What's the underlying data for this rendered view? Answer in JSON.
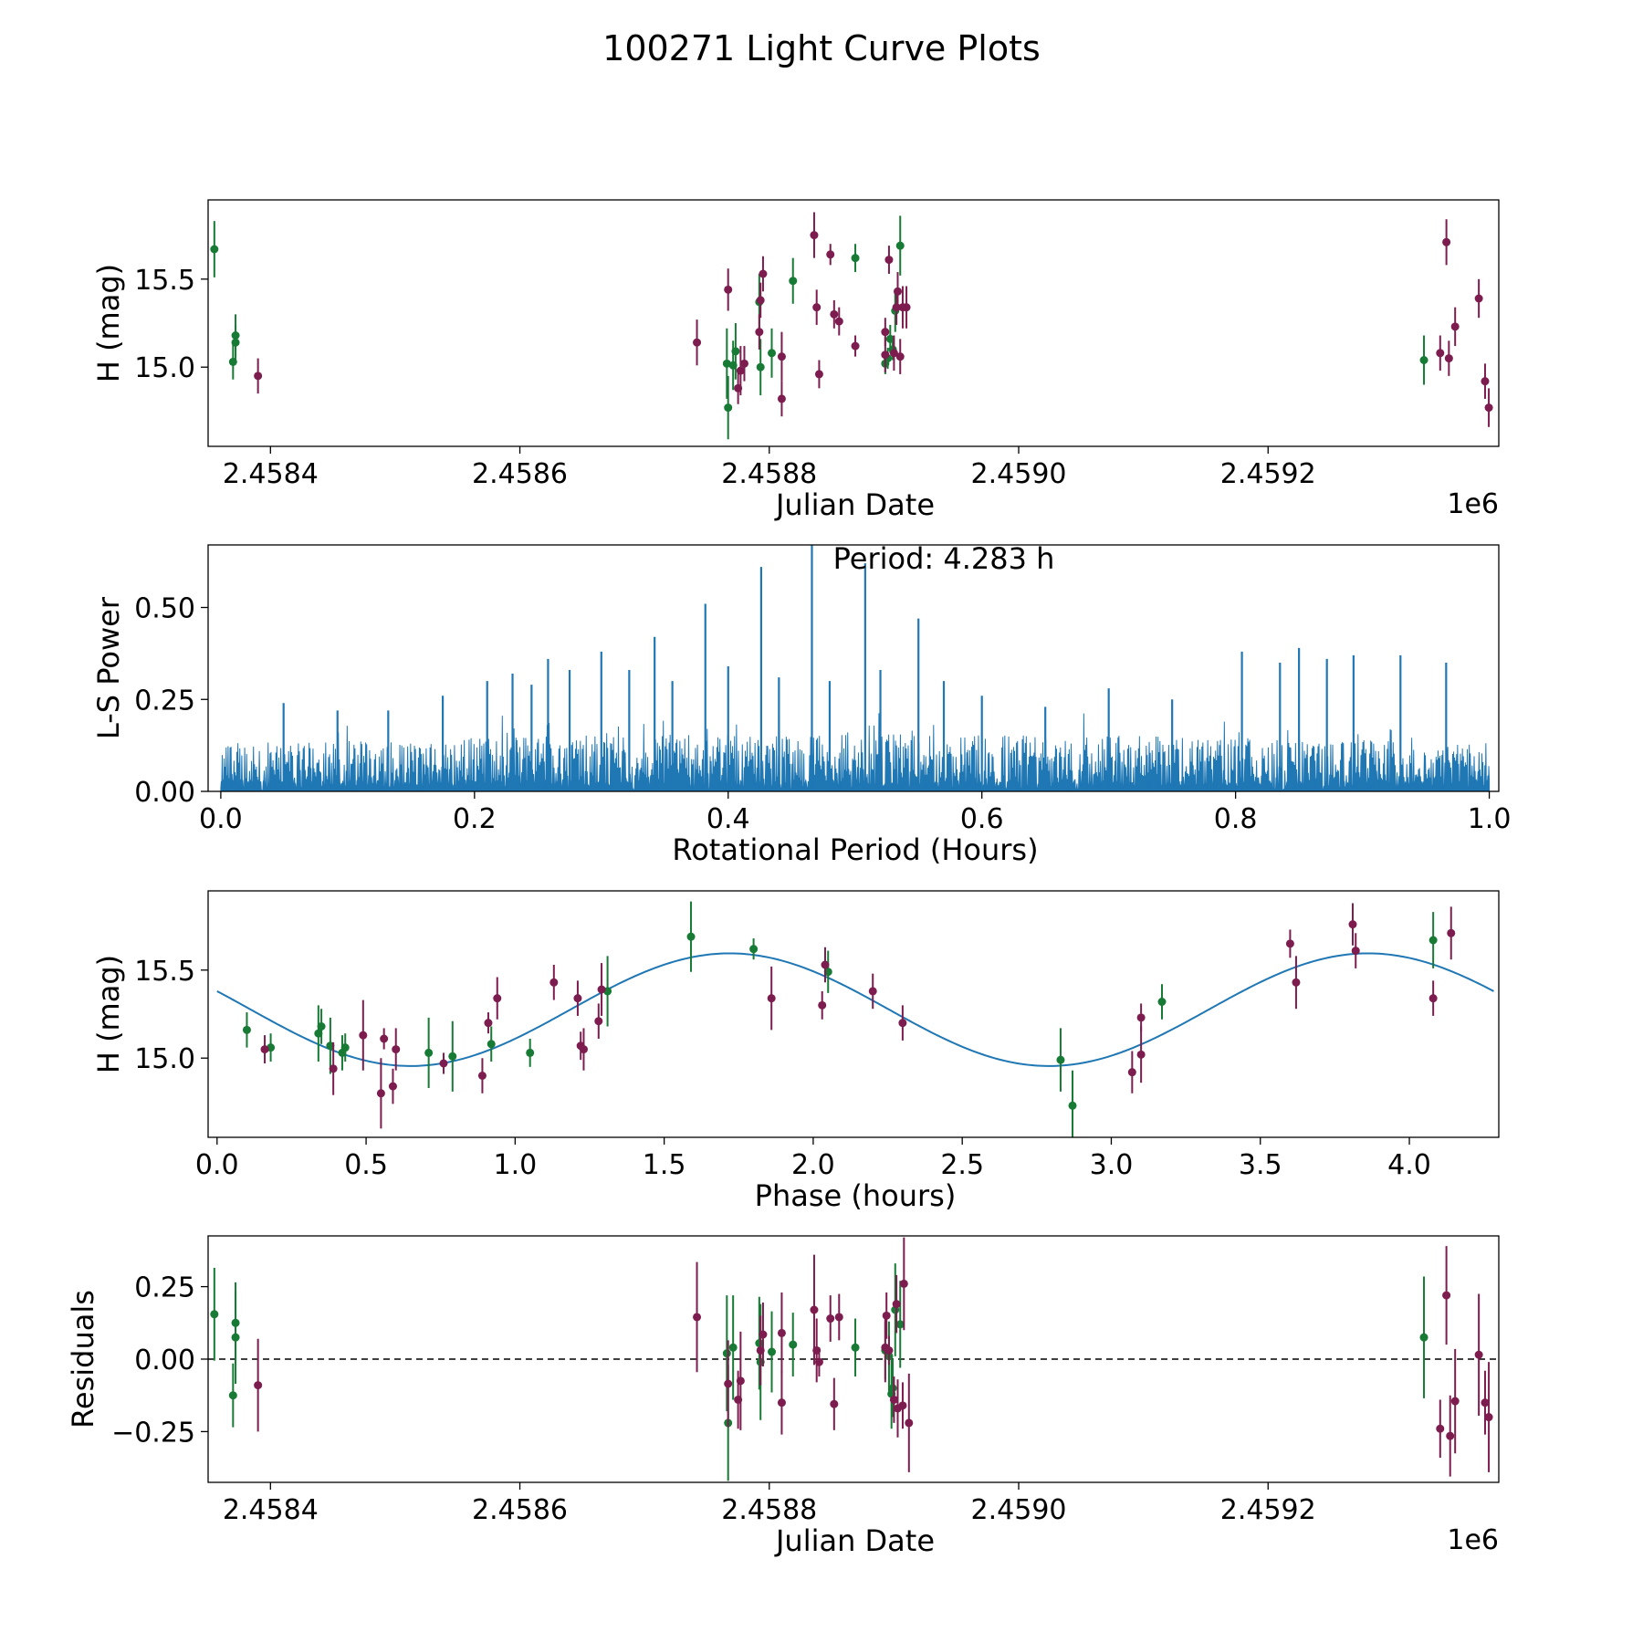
{
  "figure_title": "100271 Light Curve Plots",
  "colors": {
    "green": "#177a35",
    "purple": "#7d1c4e",
    "blue": "#1f77b4"
  },
  "chart_data": [
    {
      "id": "lightcurve",
      "type": "scatter",
      "xlabel": "Julian Date",
      "ylabel": "H (mag)",
      "xlim": [
        2458350,
        2459385
      ],
      "ylim": [
        14.55,
        15.95
      ],
      "xticks": [
        2458400,
        2458600,
        2458800,
        2459000,
        2459200
      ],
      "xtick_labels": [
        "2.4584",
        "2.4586",
        "2.4588",
        "2.4590",
        "2.4592"
      ],
      "yticks": [
        15.0,
        15.5
      ],
      "ytick_labels": [
        "15.0",
        "15.5"
      ],
      "offset_text": "1e6",
      "series": [
        {
          "name": "green",
          "color": "green",
          "points": [
            [
              2458355,
              15.67,
              0.16
            ],
            [
              2458370,
              15.03,
              0.1
            ],
            [
              2458372,
              15.14,
              0.1
            ],
            [
              2458372,
              15.18,
              0.12
            ],
            [
              2458766,
              15.02,
              0.2
            ],
            [
              2458767,
              14.77,
              0.18
            ],
            [
              2458771,
              15.01,
              0.14
            ],
            [
              2458773,
              15.09,
              0.16
            ],
            [
              2458792,
              15.37,
              0.16
            ],
            [
              2458793,
              15.0,
              0.16
            ],
            [
              2458802,
              15.08,
              0.14
            ],
            [
              2458819,
              15.49,
              0.13
            ],
            [
              2458869,
              15.62,
              0.08
            ],
            [
              2458893,
              15.02,
              0.06
            ],
            [
              2458895,
              15.05,
              0.06
            ],
            [
              2458897,
              15.16,
              0.08
            ],
            [
              2458899,
              15.1,
              0.06
            ],
            [
              2458901,
              15.32,
              0.12
            ],
            [
              2458905,
              15.69,
              0.17
            ],
            [
              2459325,
              15.04,
              0.14
            ]
          ]
        },
        {
          "name": "purple",
          "color": "purple",
          "points": [
            [
              2458390,
              14.95,
              0.1
            ],
            [
              2458742,
              15.14,
              0.13
            ],
            [
              2458767,
              15.44,
              0.12
            ],
            [
              2458775,
              14.88,
              0.09
            ],
            [
              2458777,
              14.98,
              0.14
            ],
            [
              2458780,
              15.02,
              0.1
            ],
            [
              2458792,
              15.2,
              0.1
            ],
            [
              2458793,
              15.38,
              0.1
            ],
            [
              2458795,
              15.53,
              0.1
            ],
            [
              2458810,
              15.06,
              0.14
            ],
            [
              2458810,
              14.82,
              0.1
            ],
            [
              2458836,
              15.75,
              0.13
            ],
            [
              2458838,
              15.34,
              0.1
            ],
            [
              2458840,
              14.96,
              0.08
            ],
            [
              2458849,
              15.64,
              0.06
            ],
            [
              2458852,
              15.3,
              0.08
            ],
            [
              2458856,
              15.26,
              0.08
            ],
            [
              2458869,
              15.12,
              0.06
            ],
            [
              2458893,
              15.07,
              0.1
            ],
            [
              2458893,
              15.2,
              0.08
            ],
            [
              2458896,
              15.61,
              0.08
            ],
            [
              2458900,
              15.08,
              0.1
            ],
            [
              2458902,
              15.34,
              0.1
            ],
            [
              2458903,
              15.43,
              0.11
            ],
            [
              2458905,
              15.06,
              0.1
            ],
            [
              2458907,
              15.34,
              0.12
            ],
            [
              2458910,
              15.34,
              0.12
            ],
            [
              2459338,
              15.08,
              0.1
            ],
            [
              2459343,
              15.71,
              0.13
            ],
            [
              2459345,
              15.05,
              0.1
            ],
            [
              2459350,
              15.23,
              0.11
            ],
            [
              2459369,
              15.39,
              0.11
            ],
            [
              2459374,
              14.92,
              0.1
            ],
            [
              2459377,
              14.77,
              0.11
            ]
          ]
        }
      ]
    },
    {
      "id": "periodogram",
      "type": "line",
      "xlabel": "Rotational Period (Hours)",
      "ylabel": "L-S Power",
      "xlim": [
        -0.01,
        1.0075
      ],
      "ylim": [
        0,
        0.67
      ],
      "xticks": [
        0.0,
        0.2,
        0.4,
        0.6,
        0.8,
        1.0
      ],
      "xtick_labels": [
        "0.0",
        "0.2",
        "0.4",
        "0.6",
        "0.8",
        "1.0"
      ],
      "yticks": [
        0.0,
        0.25,
        0.5
      ],
      "ytick_labels": [
        "0.00",
        "0.25",
        "0.50"
      ],
      "annotation": "Period: 4.283 h",
      "annotation_position": "top-center",
      "x_range": [
        0.0,
        1.0
      ],
      "baseline_mean": 0.1,
      "peaks": [
        [
          0.0495,
          0.24
        ],
        [
          0.092,
          0.22
        ],
        [
          0.132,
          0.22
        ],
        [
          0.175,
          0.26
        ],
        [
          0.21,
          0.3
        ],
        [
          0.23,
          0.32
        ],
        [
          0.245,
          0.29
        ],
        [
          0.258,
          0.36
        ],
        [
          0.275,
          0.33
        ],
        [
          0.3,
          0.38
        ],
        [
          0.322,
          0.33
        ],
        [
          0.342,
          0.42
        ],
        [
          0.356,
          0.3
        ],
        [
          0.382,
          0.51
        ],
        [
          0.4,
          0.34
        ],
        [
          0.426,
          0.61
        ],
        [
          0.44,
          0.31
        ],
        [
          0.466,
          0.67
        ],
        [
          0.48,
          0.3
        ],
        [
          0.508,
          0.62
        ],
        [
          0.52,
          0.33
        ],
        [
          0.55,
          0.47
        ],
        [
          0.57,
          0.3
        ],
        [
          0.6,
          0.26
        ],
        [
          0.65,
          0.23
        ],
        [
          0.7,
          0.28
        ],
        [
          0.75,
          0.25
        ],
        [
          0.805,
          0.38
        ],
        [
          0.835,
          0.35
        ],
        [
          0.85,
          0.39
        ],
        [
          0.872,
          0.36
        ],
        [
          0.893,
          0.37
        ],
        [
          0.93,
          0.37
        ],
        [
          0.966,
          0.35
        ]
      ]
    },
    {
      "id": "folded",
      "type": "scatter",
      "xlabel": "Phase (hours)",
      "ylabel": "H (mag)",
      "xlim": [
        -0.03,
        4.3
      ],
      "ylim": [
        14.55,
        15.95
      ],
      "xticks": [
        0.0,
        0.5,
        1.0,
        1.5,
        2.0,
        2.5,
        3.0,
        3.5,
        4.0
      ],
      "xtick_labels": [
        "0.0",
        "0.5",
        "1.0",
        "1.5",
        "2.0",
        "2.5",
        "3.0",
        "3.5",
        "4.0"
      ],
      "yticks": [
        15.0,
        15.5
      ],
      "ytick_labels": [
        "15.0",
        "15.5"
      ],
      "fit": {
        "mean": 15.275,
        "amplitude": 0.32,
        "peak_phase": 1.72,
        "period": 4.283,
        "x_range": [
          0.0,
          4.283
        ]
      },
      "series": [
        {
          "name": "green",
          "color": "green",
          "points": [
            [
              0.1,
              15.16,
              0.1
            ],
            [
              0.18,
              15.06,
              0.08
            ],
            [
              0.34,
              15.14,
              0.16
            ],
            [
              0.35,
              15.18,
              0.1
            ],
            [
              0.38,
              15.07,
              0.16
            ],
            [
              0.42,
              15.03,
              0.1
            ],
            [
              0.43,
              15.06,
              0.08
            ],
            [
              0.71,
              15.03,
              0.2
            ],
            [
              0.79,
              15.01,
              0.2
            ],
            [
              0.92,
              15.08,
              0.1
            ],
            [
              1.05,
              15.03,
              0.08
            ],
            [
              1.31,
              15.38,
              0.2
            ],
            [
              1.59,
              15.69,
              0.2
            ],
            [
              1.8,
              15.62,
              0.06
            ],
            [
              2.05,
              15.49,
              0.12
            ],
            [
              2.83,
              14.99,
              0.18
            ],
            [
              2.87,
              14.73,
              0.2
            ],
            [
              3.17,
              15.32,
              0.1
            ],
            [
              4.08,
              15.67,
              0.16
            ]
          ]
        },
        {
          "name": "purple",
          "color": "purple",
          "points": [
            [
              0.16,
              15.05,
              0.08
            ],
            [
              0.39,
              14.94,
              0.15
            ],
            [
              0.49,
              15.13,
              0.2
            ],
            [
              0.55,
              14.8,
              0.2
            ],
            [
              0.56,
              15.11,
              0.06
            ],
            [
              0.59,
              14.84,
              0.1
            ],
            [
              0.6,
              15.05,
              0.12
            ],
            [
              0.76,
              14.97,
              0.06
            ],
            [
              0.89,
              14.9,
              0.1
            ],
            [
              0.91,
              15.2,
              0.06
            ],
            [
              0.94,
              15.34,
              0.12
            ],
            [
              1.13,
              15.43,
              0.1
            ],
            [
              1.21,
              15.34,
              0.1
            ],
            [
              1.22,
              15.07,
              0.08
            ],
            [
              1.23,
              15.05,
              0.12
            ],
            [
              1.28,
              15.21,
              0.1
            ],
            [
              1.29,
              15.39,
              0.15
            ],
            [
              1.86,
              15.34,
              0.18
            ],
            [
              2.03,
              15.3,
              0.08
            ],
            [
              2.04,
              15.53,
              0.1
            ],
            [
              2.2,
              15.38,
              0.1
            ],
            [
              2.3,
              15.2,
              0.1
            ],
            [
              3.07,
              14.92,
              0.12
            ],
            [
              3.1,
              15.23,
              0.08
            ],
            [
              3.1,
              15.02,
              0.16
            ],
            [
              3.6,
              15.65,
              0.08
            ],
            [
              3.62,
              15.43,
              0.15
            ],
            [
              3.81,
              15.76,
              0.12
            ],
            [
              3.82,
              15.61,
              0.1
            ],
            [
              4.08,
              15.34,
              0.1
            ],
            [
              4.14,
              15.71,
              0.15
            ]
          ]
        }
      ]
    },
    {
      "id": "residuals",
      "type": "scatter",
      "xlabel": "Julian Date",
      "ylabel": "Residuals",
      "xlim": [
        2458350,
        2459385
      ],
      "ylim": [
        -0.425,
        0.425
      ],
      "xticks": [
        2458400,
        2458600,
        2458800,
        2459000,
        2459200
      ],
      "xtick_labels": [
        "2.4584",
        "2.4586",
        "2.4588",
        "2.4590",
        "2.4592"
      ],
      "yticks": [
        -0.25,
        0.0,
        0.25
      ],
      "ytick_labels": [
        "−0.25",
        "0.00",
        "0.25"
      ],
      "offset_text": "1e6",
      "reference_line": 0.0,
      "series": [
        {
          "name": "green",
          "color": "green",
          "points": [
            [
              2458355,
              0.155,
              0.16
            ],
            [
              2458370,
              -0.125,
              0.11
            ],
            [
              2458372,
              0.125,
              0.14
            ],
            [
              2458372,
              0.075,
              0.16
            ],
            [
              2458766,
              0.02,
              0.2
            ],
            [
              2458767,
              -0.22,
              0.2
            ],
            [
              2458771,
              0.04,
              0.18
            ],
            [
              2458792,
              0.055,
              0.16
            ],
            [
              2458793,
              -0.01,
              0.2
            ],
            [
              2458802,
              0.025,
              0.14
            ],
            [
              2458819,
              0.05,
              0.11
            ],
            [
              2458869,
              0.04,
              0.1
            ],
            [
              2458893,
              0.03,
              0.1
            ],
            [
              2458896,
              0.01,
              0.12
            ],
            [
              2458898,
              -0.12,
              0.12
            ],
            [
              2458899,
              -0.1,
              0.1
            ],
            [
              2458901,
              0.17,
              0.16
            ],
            [
              2458905,
              0.12,
              0.15
            ],
            [
              2459325,
              0.075,
              0.21
            ]
          ]
        },
        {
          "name": "purple",
          "color": "purple",
          "points": [
            [
              2458390,
              -0.09,
              0.16
            ],
            [
              2458742,
              0.145,
              0.19
            ],
            [
              2458767,
              -0.085,
              0.15
            ],
            [
              2458775,
              -0.14,
              0.1
            ],
            [
              2458777,
              -0.075,
              0.17
            ],
            [
              2458793,
              0.03,
              0.12
            ],
            [
              2458795,
              0.085,
              0.11
            ],
            [
              2458810,
              0.09,
              0.14
            ],
            [
              2458810,
              -0.15,
              0.11
            ],
            [
              2458836,
              0.17,
              0.19
            ],
            [
              2458838,
              0.03,
              0.11
            ],
            [
              2458840,
              -0.01,
              0.05
            ],
            [
              2458849,
              0.14,
              0.08
            ],
            [
              2458852,
              -0.155,
              0.09
            ],
            [
              2458856,
              0.145,
              0.08
            ],
            [
              2458893,
              0.04,
              0.12
            ],
            [
              2458894,
              0.15,
              0.08
            ],
            [
              2458896,
              0.03,
              0.05
            ],
            [
              2458900,
              -0.14,
              0.08
            ],
            [
              2458902,
              0.19,
              0.1
            ],
            [
              2458903,
              -0.17,
              0.1
            ],
            [
              2458907,
              -0.16,
              0.08
            ],
            [
              2458908,
              0.26,
              0.16
            ],
            [
              2458912,
              -0.22,
              0.17
            ],
            [
              2459338,
              -0.24,
              0.1
            ],
            [
              2459343,
              0.22,
              0.17
            ],
            [
              2459346,
              -0.265,
              0.14
            ],
            [
              2459350,
              -0.145,
              0.18
            ],
            [
              2459369,
              0.015,
              0.21
            ],
            [
              2459374,
              -0.15,
              0.11
            ],
            [
              2459377,
              -0.2,
              0.19
            ]
          ]
        }
      ]
    }
  ]
}
